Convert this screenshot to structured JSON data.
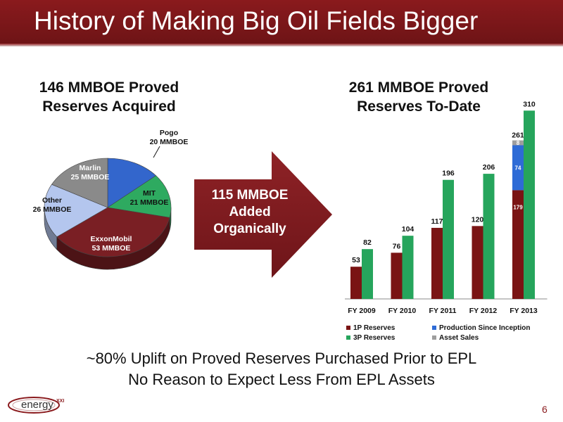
{
  "slide": {
    "title": "History of Making Big Oil Fields Bigger",
    "arrow_text": [
      "115 MMBOE",
      "Added",
      "Organically"
    ],
    "bottom_lines": [
      "~80% Uplift on Proved Reserves Purchased Prior to EPL",
      "No Reason to Expect Less From EPL Assets"
    ],
    "page_number": "6",
    "logo_text": "energy",
    "logo_superscript": "XXI"
  },
  "chart_data": [
    {
      "type": "pie",
      "title": [
        "146 MMBOE Proved",
        "Reserves Acquired"
      ],
      "slices": [
        {
          "label": "Pogo",
          "sublabel": "20 MMBOE",
          "value": 20,
          "color": "#3366cc"
        },
        {
          "label": "MIT",
          "sublabel": "21 MMBOE",
          "value": 21,
          "color": "#2eaa60"
        },
        {
          "label": "ExxonMobil",
          "sublabel": "53 MMBOE",
          "value": 53,
          "color": "#7a1f24"
        },
        {
          "label": "Other",
          "sublabel": "26 MMBOE",
          "value": 26,
          "color": "#b4c6ee"
        },
        {
          "label": "Marlin",
          "sublabel": "25 MMBOE",
          "value": 25,
          "color": "#8a8a8a"
        }
      ]
    },
    {
      "type": "bar",
      "title": [
        "261 MMBOE Proved",
        "Reserves To-Date"
      ],
      "categories": [
        "FY 2009",
        "FY 2010",
        "FY 2011",
        "FY 2012",
        "FY 2013"
      ],
      "ylim": [
        0,
        330
      ],
      "grid": false,
      "legend_position": "bottom",
      "series": [
        {
          "name": "1P Reserves",
          "color": "#7a1414",
          "values": [
            53,
            76,
            117,
            120,
            179
          ]
        },
        {
          "name": "3P Reserves",
          "color": "#26a55c",
          "values": [
            82,
            104,
            196,
            206,
            310
          ]
        },
        {
          "name": "Production Since Inception",
          "color": "#2e6bd6",
          "values": [
            null,
            null,
            null,
            null,
            74
          ]
        },
        {
          "name": "Asset Sales",
          "color": "#9e9e9e",
          "values": [
            null,
            null,
            null,
            null,
            8
          ]
        }
      ],
      "stack_total_label": {
        "category": "FY 2013",
        "value": "261"
      }
    }
  ]
}
